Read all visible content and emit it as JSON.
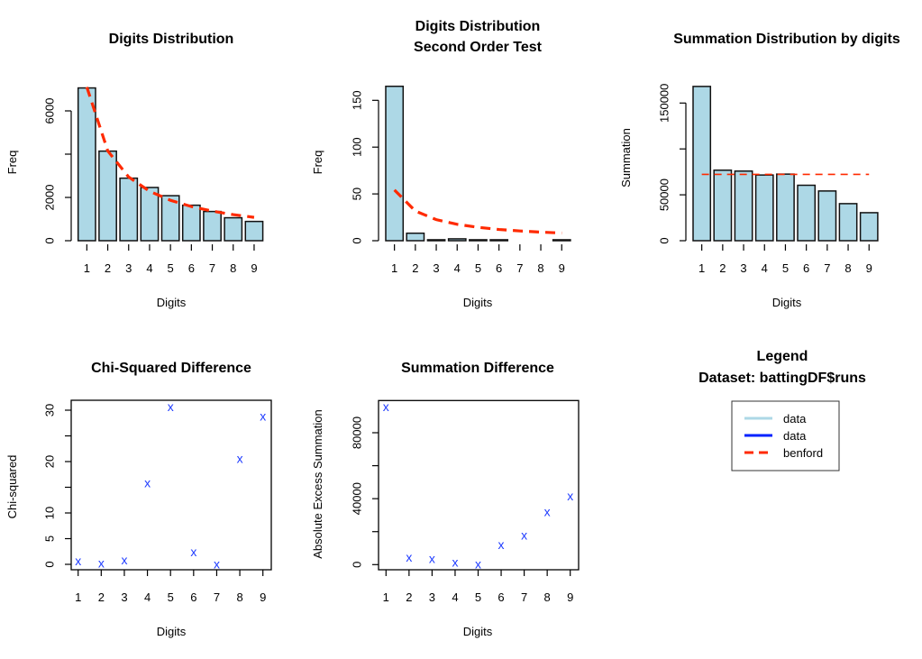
{
  "colors": {
    "bar_fill": "#add8e6",
    "bar_border": "#111111",
    "benford": "#ff2a00",
    "points": "#1f3cff",
    "legend_data_light": "#add8e6",
    "legend_data_dark": "#0022ff"
  },
  "chart_data": [
    {
      "id": "digits-distribution",
      "type": "bar",
      "title": "Digits Distribution",
      "xlabel": "Digits",
      "ylabel": "Freq",
      "categories": [
        "1",
        "2",
        "3",
        "4",
        "5",
        "6",
        "7",
        "8",
        "9"
      ],
      "values": [
        7060,
        4140,
        2890,
        2460,
        2080,
        1640,
        1350,
        1060,
        890
      ],
      "benford": [
        7097,
        4151,
        2945,
        2285,
        1867,
        1578,
        1367,
        1206,
        1079
      ],
      "yticks": [
        0,
        2000,
        4000,
        6000
      ],
      "ytick_labels": [
        "0",
        "2000",
        "",
        "6000"
      ],
      "ylim": [
        0,
        7400
      ]
    },
    {
      "id": "second-order-test",
      "type": "bar",
      "title": "Digits Distribution\nSecond Order Test",
      "title_lines": [
        "Digits Distribution",
        "Second Order Test"
      ],
      "xlabel": "Digits",
      "ylabel": "Freq",
      "categories": [
        "1",
        "2",
        "3",
        "4",
        "5",
        "6",
        "7",
        "8",
        "9"
      ],
      "values": [
        165,
        8,
        1,
        2,
        1,
        1,
        0,
        0,
        1
      ],
      "benford": [
        54.2,
        31.7,
        22.5,
        17.5,
        14.3,
        12.0,
        10.4,
        9.2,
        8.2
      ],
      "yticks": [
        0,
        50,
        100,
        150
      ],
      "ytick_labels": [
        "0",
        "50",
        "100",
        "150"
      ],
      "ylim": [
        0,
        172
      ]
    },
    {
      "id": "summation-distribution",
      "type": "bar",
      "title": "Summation Distribution by digits",
      "xlabel": "Digits",
      "ylabel": "Summation",
      "categories": [
        "1",
        "2",
        "3",
        "4",
        "5",
        "6",
        "7",
        "8",
        "9"
      ],
      "values": [
        168100,
        76820,
        75840,
        71570,
        72560,
        60410,
        54170,
        40380,
        30530
      ],
      "benford": [
        72230,
        72230,
        72230,
        72230,
        72230,
        72230,
        72230,
        72230,
        72230
      ],
      "yticks": [
        0,
        50000,
        100000,
        150000
      ],
      "ytick_labels": [
        "0",
        "50000",
        "",
        "150000"
      ],
      "ylim": [
        0,
        175000
      ]
    },
    {
      "id": "chi-squared-difference",
      "type": "scatter",
      "title": "Chi-Squared Difference",
      "xlabel": "Digits",
      "ylabel": "Chi-squared",
      "marker": "x",
      "x": [
        1,
        2,
        3,
        4,
        5,
        6,
        7,
        8,
        9
      ],
      "y": [
        0.6,
        0.2,
        0.8,
        15.8,
        30.6,
        2.4,
        0.0,
        20.5,
        28.8
      ],
      "xticks": [
        "1",
        "2",
        "3",
        "4",
        "5",
        "6",
        "7",
        "8",
        "9"
      ],
      "yticks": [
        0,
        5,
        10,
        15,
        20,
        25,
        30
      ],
      "ytick_labels": [
        "0",
        "5",
        "10",
        "",
        "20",
        "",
        "30"
      ],
      "ylim": [
        -0.6,
        31.8
      ]
    },
    {
      "id": "summation-difference",
      "type": "scatter",
      "title": "Summation Difference",
      "xlabel": "Digits",
      "ylabel": "Absolute Excess Summation",
      "marker": "x",
      "x": [
        1,
        2,
        3,
        4,
        5,
        6,
        7,
        8,
        9
      ],
      "y": [
        95480,
        4380,
        3450,
        1260,
        160,
        12030,
        17660,
        31880,
        41340
      ],
      "xticks": [
        "1",
        "2",
        "3",
        "4",
        "5",
        "6",
        "7",
        "8",
        "9"
      ],
      "yticks": [
        0,
        20000,
        40000,
        60000,
        80000
      ],
      "ytick_labels": [
        "0",
        "",
        "40000",
        "",
        "80000"
      ],
      "ylim": [
        -3200,
        99000
      ]
    }
  ],
  "legend": {
    "title_lines": [
      "Legend",
      "Dataset: battingDF$runs"
    ],
    "entries": [
      {
        "label": "data",
        "style": "solid-light"
      },
      {
        "label": "data",
        "style": "solid-dark"
      },
      {
        "label": "benford",
        "style": "dashed"
      }
    ]
  }
}
